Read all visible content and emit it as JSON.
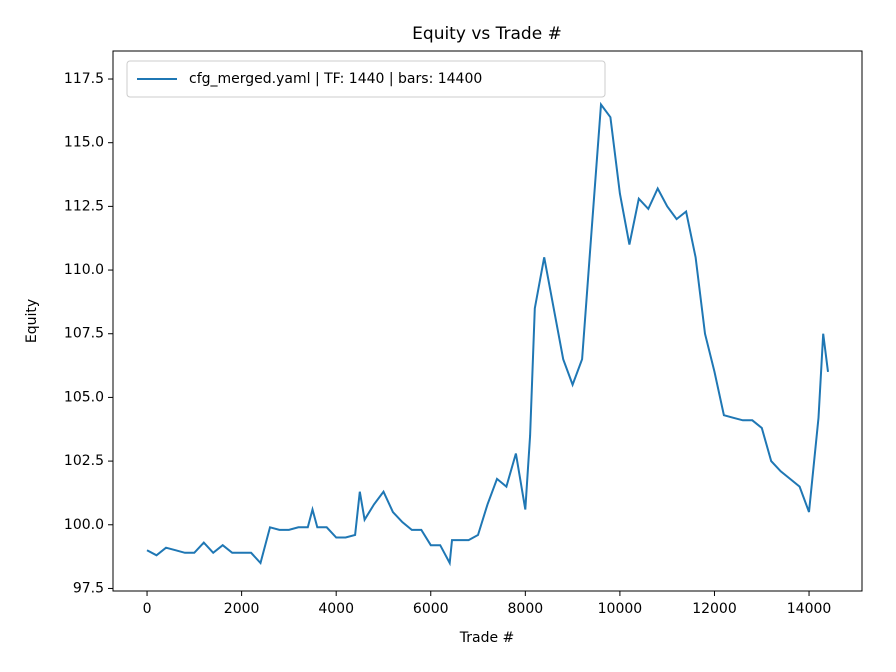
{
  "chart_data": {
    "type": "line",
    "title": "Equity vs Trade #",
    "x_label": "Trade #",
    "y_label": "Equity",
    "x": [
      0,
      200,
      400,
      600,
      800,
      1000,
      1200,
      1400,
      1600,
      1800,
      2000,
      2200,
      2400,
      2600,
      2800,
      3000,
      3200,
      3400,
      3500,
      3600,
      3800,
      4000,
      4200,
      4400,
      4500,
      4600,
      4800,
      5000,
      5200,
      5400,
      5600,
      5800,
      6000,
      6200,
      6400,
      6450,
      6600,
      6800,
      7000,
      7200,
      7400,
      7600,
      7800,
      8000,
      8100,
      8200,
      8400,
      8600,
      8800,
      9000,
      9200,
      9400,
      9600,
      9800,
      10000,
      10200,
      10400,
      10600,
      10800,
      11000,
      11200,
      11400,
      11600,
      11800,
      12000,
      12200,
      12400,
      12600,
      12800,
      13000,
      13200,
      13400,
      13600,
      13800,
      14000,
      14200,
      14300,
      14400
    ],
    "series": [
      {
        "name": "cfg_merged.yaml | TF: 1440 | bars: 14400",
        "color": "#1f77b4",
        "values": [
          99.0,
          98.8,
          99.1,
          99.0,
          98.9,
          98.9,
          99.3,
          98.9,
          99.2,
          98.9,
          98.9,
          98.9,
          98.5,
          99.9,
          99.8,
          99.8,
          99.9,
          99.9,
          100.6,
          99.9,
          99.9,
          99.5,
          99.5,
          99.6,
          101.3,
          100.2,
          100.8,
          101.3,
          100.5,
          100.1,
          99.8,
          99.8,
          99.2,
          99.2,
          98.5,
          99.4,
          99.4,
          99.4,
          99.6,
          100.8,
          101.8,
          101.5,
          102.8,
          100.6,
          103.5,
          108.5,
          110.5,
          108.5,
          106.5,
          105.5,
          106.5,
          111.5,
          116.5,
          116.0,
          113.0,
          111.0,
          112.8,
          112.4,
          113.2,
          112.5,
          112.0,
          112.3,
          110.5,
          107.5,
          106.0,
          104.3,
          104.2,
          104.1,
          104.1,
          103.8,
          102.5,
          102.1,
          101.8,
          101.5,
          100.5,
          104.2,
          107.5,
          106.0
        ]
      }
    ],
    "xlim": [
      -720,
      15120
    ],
    "ylim": [
      97.4,
      118.6
    ],
    "xticks": [
      0,
      2000,
      4000,
      6000,
      8000,
      10000,
      12000,
      14000
    ],
    "yticks": [
      97.5,
      {
        "value": 100,
        "label": "100.0"
      },
      102.5,
      {
        "value": 105,
        "label": "105.0"
      },
      107.5,
      {
        "value": 110,
        "label": "110.0"
      },
      112.5,
      {
        "value": 115,
        "label": "115.0"
      },
      117.5
    ],
    "legend": "upper left",
    "grid": false
  }
}
